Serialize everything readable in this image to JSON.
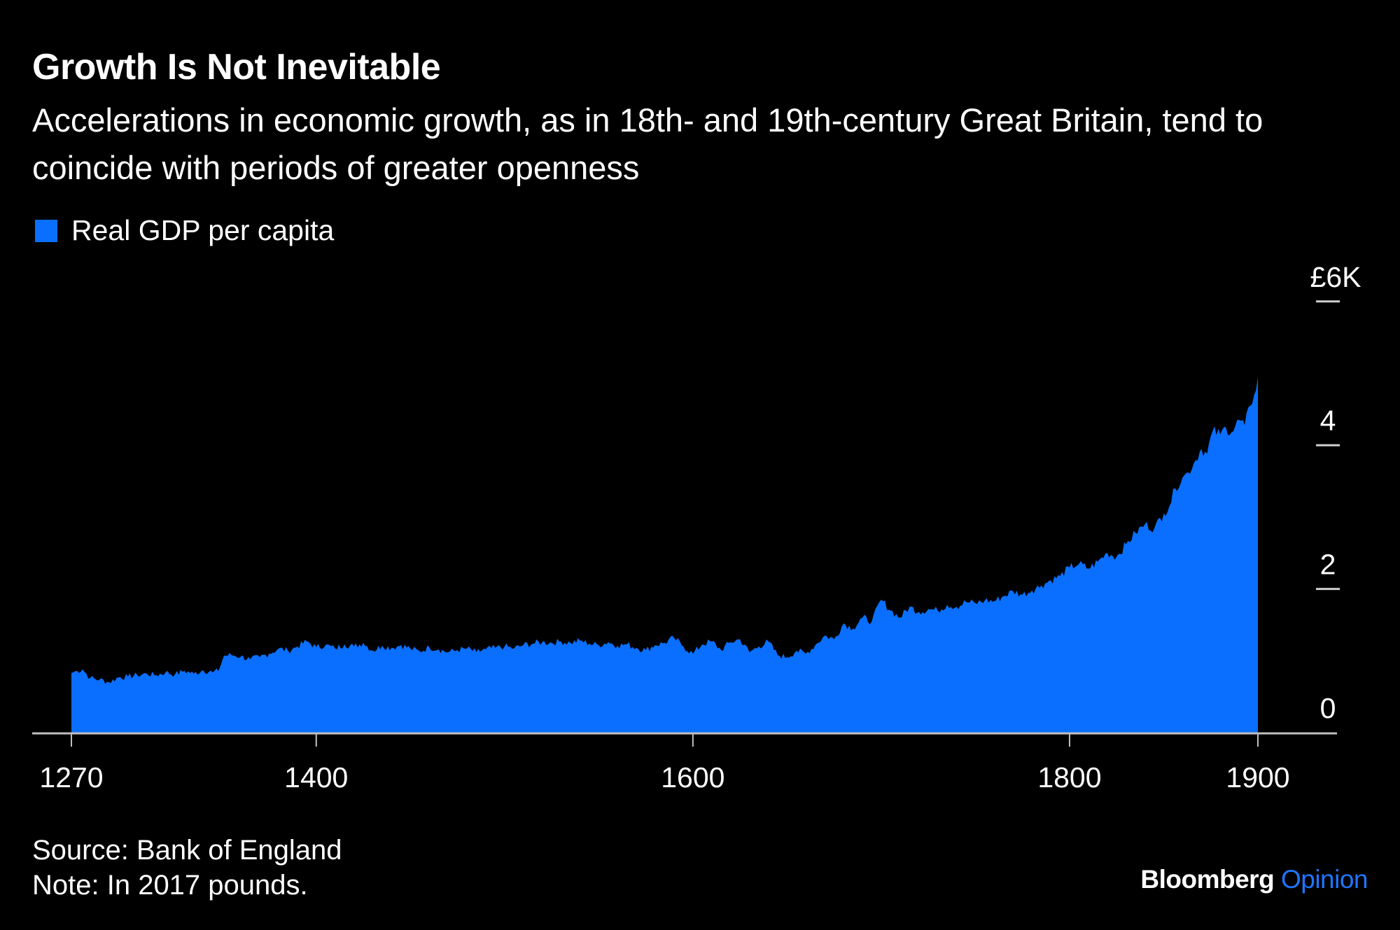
{
  "header": {
    "title": "Growth Is Not Inevitable",
    "subtitle": "Accelerations in economic growth, as in 18th- and 19th-century Great Britain, tend to coincide with periods of greater openness"
  },
  "legend": {
    "label": "Real GDP per capita",
    "color": "#0a6fff"
  },
  "footer": {
    "source": "Source: Bank of England",
    "note": "Note: In 2017 pounds."
  },
  "brand": {
    "name": "Bloomberg",
    "section": "Opinion",
    "section_color": "#1f75fe"
  },
  "chart_data": {
    "type": "area",
    "title": "Growth Is Not Inevitable",
    "series": [
      {
        "name": "Real GDP per capita",
        "color": "#0a6fff",
        "x": [
          1270,
          1273,
          1276,
          1280,
          1285,
          1290,
          1295,
          1300,
          1305,
          1310,
          1315,
          1320,
          1325,
          1330,
          1335,
          1340,
          1345,
          1348,
          1351,
          1355,
          1360,
          1365,
          1370,
          1375,
          1380,
          1385,
          1390,
          1395,
          1400,
          1405,
          1410,
          1415,
          1420,
          1425,
          1430,
          1435,
          1440,
          1445,
          1450,
          1455,
          1460,
          1465,
          1470,
          1475,
          1480,
          1485,
          1490,
          1495,
          1500,
          1505,
          1510,
          1515,
          1520,
          1525,
          1530,
          1535,
          1540,
          1545,
          1550,
          1555,
          1560,
          1565,
          1570,
          1575,
          1580,
          1585,
          1590,
          1595,
          1600,
          1605,
          1610,
          1615,
          1620,
          1625,
          1630,
          1635,
          1640,
          1645,
          1650,
          1655,
          1660,
          1665,
          1670,
          1675,
          1680,
          1685,
          1690,
          1695,
          1700,
          1705,
          1710,
          1715,
          1720,
          1725,
          1730,
          1735,
          1740,
          1745,
          1750,
          1755,
          1760,
          1765,
          1770,
          1775,
          1780,
          1785,
          1790,
          1795,
          1800,
          1805,
          1810,
          1815,
          1820,
          1825,
          1830,
          1835,
          1840,
          1845,
          1850,
          1853,
          1856,
          1860,
          1863,
          1866,
          1870,
          1873,
          1876,
          1880,
          1883,
          1886,
          1890,
          1893,
          1896,
          1898,
          1900
        ],
        "values": [
          0.83,
          0.86,
          0.88,
          0.76,
          0.74,
          0.7,
          0.77,
          0.78,
          0.8,
          0.82,
          0.8,
          0.84,
          0.81,
          0.86,
          0.82,
          0.87,
          0.84,
          0.86,
          1.07,
          1.08,
          1.06,
          1.02,
          1.05,
          1.1,
          1.17,
          1.14,
          1.2,
          1.27,
          1.19,
          1.22,
          1.17,
          1.23,
          1.2,
          1.25,
          1.14,
          1.21,
          1.18,
          1.22,
          1.17,
          1.13,
          1.19,
          1.16,
          1.12,
          1.15,
          1.17,
          1.12,
          1.16,
          1.18,
          1.2,
          1.17,
          1.22,
          1.24,
          1.26,
          1.25,
          1.27,
          1.25,
          1.28,
          1.24,
          1.22,
          1.26,
          1.21,
          1.23,
          1.18,
          1.15,
          1.22,
          1.25,
          1.32,
          1.2,
          1.1,
          1.23,
          1.27,
          1.15,
          1.26,
          1.3,
          1.12,
          1.2,
          1.27,
          1.08,
          1.05,
          1.14,
          1.1,
          1.22,
          1.35,
          1.3,
          1.52,
          1.45,
          1.6,
          1.55,
          1.85,
          1.7,
          1.6,
          1.75,
          1.68,
          1.72,
          1.7,
          1.78,
          1.75,
          1.82,
          1.8,
          1.84,
          1.83,
          1.9,
          1.97,
          1.92,
          1.98,
          2.05,
          2.12,
          2.18,
          2.3,
          2.35,
          2.28,
          2.38,
          2.5,
          2.45,
          2.62,
          2.78,
          2.9,
          2.84,
          3.05,
          3.15,
          3.4,
          3.55,
          3.62,
          3.75,
          3.95,
          3.88,
          4.2,
          4.15,
          4.25,
          4.18,
          4.35,
          4.28,
          4.55,
          4.7,
          4.95
        ]
      }
    ],
    "xlabel": "",
    "ylabel": "",
    "xlim": [
      1270,
      1920
    ],
    "ylim": [
      0,
      6
    ],
    "x_ticks": [
      1270,
      1400,
      1600,
      1800,
      1900
    ],
    "x_tick_labels": [
      "1270",
      "1400",
      "1600",
      "1800",
      "1900"
    ],
    "y_ticks": [
      0,
      2,
      4,
      6
    ],
    "y_tick_labels": [
      "0",
      "2",
      "4",
      "£6K"
    ],
    "y_axis_side": "right",
    "grid": false,
    "legend_position": "top-left"
  }
}
